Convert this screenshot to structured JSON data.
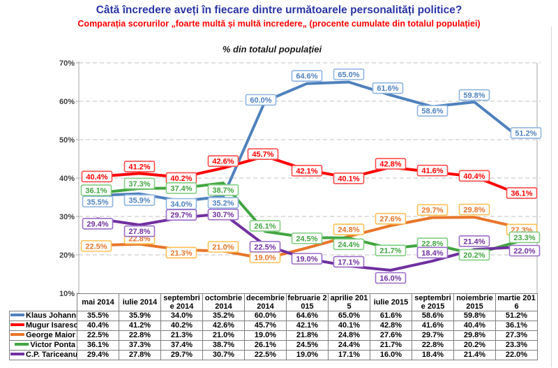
{
  "title": "Câtă încredere aveți în fiecare dintre următoarele personalități politice?",
  "subtitle": "Comparația scorurilor „foarte multă și multă incredere„ (procente cumulate din totalul populației)",
  "chart_data": {
    "type": "line",
    "title": "% din totalul populației",
    "categories": [
      "mai 2014",
      "iulie 2014",
      "septembrie 2014",
      "octombrie 2014",
      "decembrie 2014",
      "februarie 2015",
      "aprilie 2015",
      "iulie 2015",
      "septembrie 2015",
      "noiembrie 2015",
      "martie 2016"
    ],
    "series": [
      {
        "name": "Klaus Johannis",
        "color": "#4F81BD",
        "label_border": "#8EB4E0",
        "values": [
          35.5,
          35.9,
          34.0,
          35.2,
          60.0,
          64.6,
          65.0,
          61.6,
          58.6,
          59.8,
          51.2
        ]
      },
      {
        "name": "Mugur Isarescu",
        "color": "#FE0000",
        "label_border": "#FF4B4B",
        "values": [
          40.4,
          41.2,
          40.2,
          42.6,
          45.7,
          42.1,
          40.1,
          42.8,
          41.6,
          40.4,
          36.1
        ]
      },
      {
        "name": "George Maior",
        "color": "#E8752A",
        "label_border": "#FFC155",
        "values": [
          22.5,
          22.8,
          21.3,
          21.0,
          19.0,
          21.8,
          24.8,
          27.6,
          29.7,
          29.8,
          27.3
        ]
      },
      {
        "name": "Victor Ponta",
        "color": "#41A541",
        "label_border": "#82CD82",
        "values": [
          36.1,
          37.3,
          37.4,
          38.7,
          26.1,
          24.5,
          24.4,
          21.7,
          22.8,
          20.2,
          23.3
        ]
      },
      {
        "name": "C.P. Tariceanu",
        "color": "#7030A0",
        "label_border": "#9B6CC8",
        "values": [
          29.4,
          27.8,
          29.7,
          30.7,
          22.5,
          19.0,
          17.1,
          16.0,
          18.4,
          21.4,
          22.0
        ]
      }
    ],
    "ylim": [
      10,
      70
    ],
    "ytick_step": 10,
    "ytick_suffix": "%",
    "value_suffix": "%",
    "grid": "dashed-horizontal",
    "legend_position": "table-left",
    "data_labels": "boxed, colored border, white fill"
  }
}
